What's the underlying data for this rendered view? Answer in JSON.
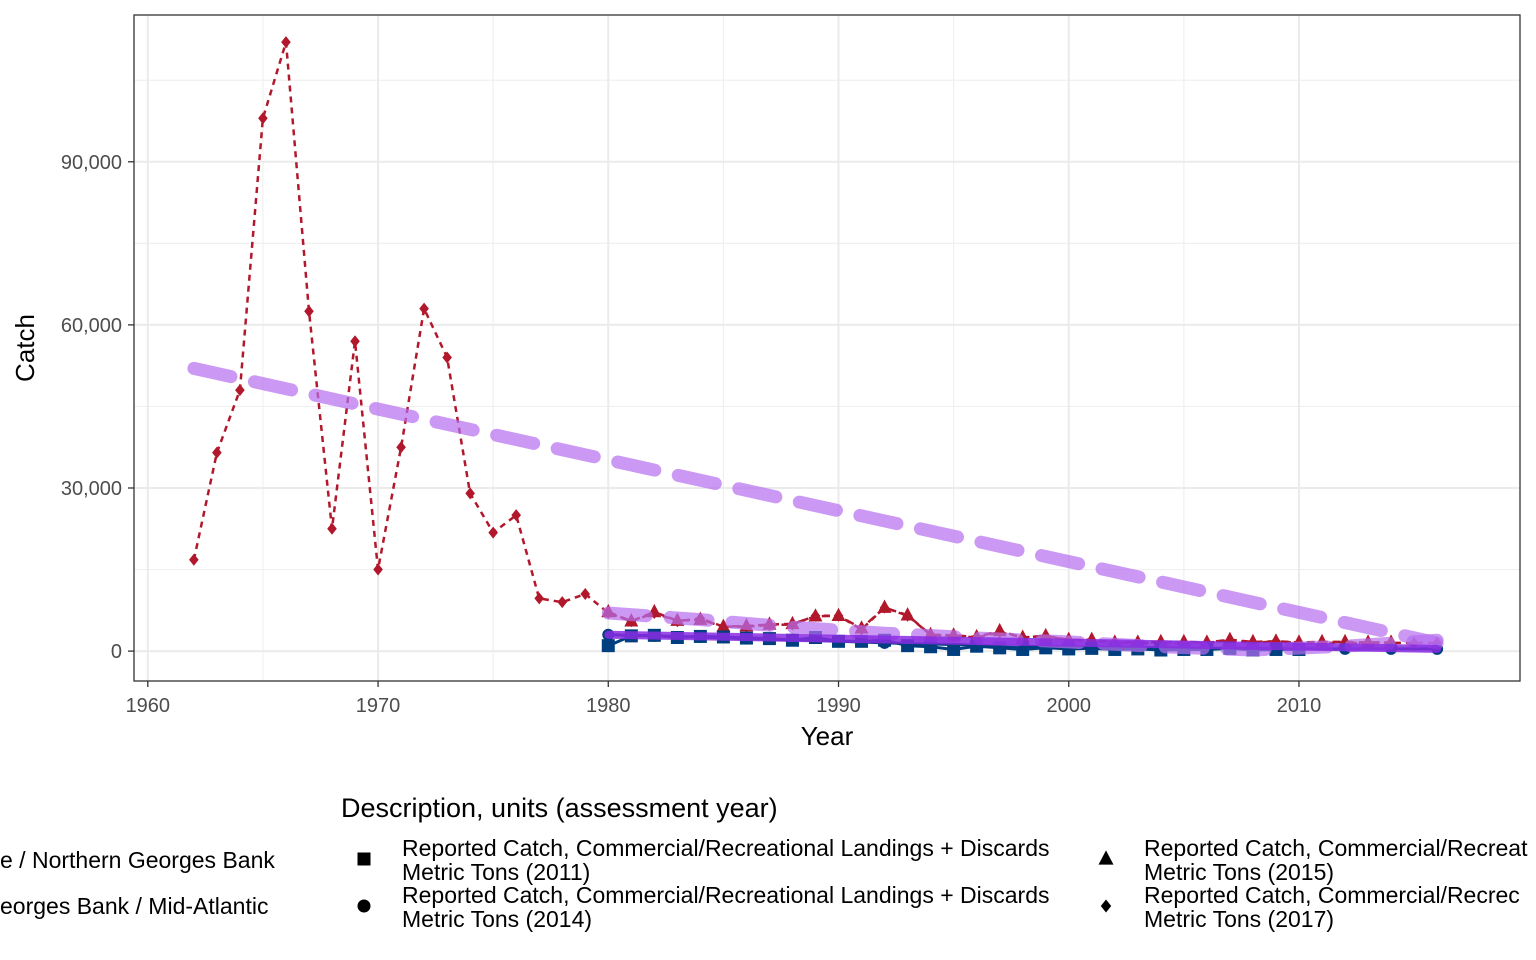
{
  "chart_data": {
    "type": "line",
    "xlabel": "Year",
    "ylabel": "Catch",
    "xlim": [
      1959.4,
      2019.6
    ],
    "ylim": [
      -5500,
      117000
    ],
    "x_ticks": [
      1960,
      1970,
      1980,
      1990,
      2000,
      2010
    ],
    "y_ticks": [
      0,
      30000,
      60000,
      90000
    ],
    "y_tick_labels": [
      "0",
      "30,000",
      "60,000",
      "90,000"
    ],
    "grid": true,
    "legend_title": "Description, units (assessment year)",
    "legend_placement": "bottom",
    "region_legend": [
      {
        "label": "e / Northern Georges Bank",
        "color": "#003f7f"
      },
      {
        "label": "eorges Bank / Mid-Atlantic",
        "color": "#b2182b"
      }
    ],
    "shape_legend": [
      {
        "shape": "square",
        "line1": "Reported Catch, Commercial/Recreational Landings + Discards",
        "line2": "Metric Tons (2011)"
      },
      {
        "shape": "circle",
        "line1": "Reported Catch, Commercial/Recreational Landings + Discards",
        "line2": "Metric Tons (2014)"
      },
      {
        "shape": "triangle",
        "line1": "Reported Catch, Commercial/Recreat",
        "line2": "Metric Tons (2015)"
      },
      {
        "shape": "diamond",
        "line1": "Reported Catch, Commercial/Recrec",
        "line2": "Metric Tons (2017)"
      }
    ],
    "series": [
      {
        "region": "southern",
        "shape": "diamond",
        "color": "#b2182b",
        "dash": "6,5",
        "width": 2.5,
        "marker_size": 6,
        "x": [
          1962,
          1963,
          1964,
          1965,
          1966,
          1967,
          1968,
          1969,
          1970,
          1971,
          1972,
          1973,
          1974,
          1975,
          1976,
          1977,
          1978,
          1979,
          1980,
          1981,
          1982,
          1983,
          1984,
          1985,
          1986,
          1987,
          1988,
          1989,
          1990,
          1991,
          1992,
          1993,
          1994,
          1995,
          1996,
          1997,
          1998,
          1999,
          2000,
          2001,
          2002,
          2003,
          2004,
          2005,
          2006,
          2007,
          2008,
          2009,
          2010,
          2011,
          2012,
          2013,
          2014,
          2015,
          2016
        ],
        "y": [
          16800,
          36500,
          48000,
          98000,
          112000,
          62500,
          22500,
          57000,
          15000,
          37500,
          63000,
          54000,
          29000,
          21800,
          25000,
          9700,
          9000,
          10500,
          7000,
          5500,
          7000,
          5500,
          6000,
          4500,
          4500,
          4800,
          4900,
          6500,
          6500,
          4000,
          8000,
          6500,
          3000,
          2800,
          2500,
          3500,
          2500,
          2800,
          2000,
          2000,
          1500,
          1500,
          1500,
          1500,
          1500,
          2000,
          1500,
          1800,
          1500,
          1500,
          1500,
          1500,
          1500,
          1500,
          1500
        ]
      },
      {
        "region": "southern",
        "shape": "triangle",
        "color": "#b2182b",
        "dash": "8,5",
        "width": 2.5,
        "marker_size": 7,
        "x": [
          1980,
          1981,
          1982,
          1983,
          1984,
          1985,
          1986,
          1987,
          1988,
          1989,
          1990,
          1991,
          1992,
          1993,
          1994,
          1995,
          1996,
          1997,
          1998,
          1999,
          2000,
          2001,
          2002,
          2003,
          2004,
          2005,
          2006,
          2007,
          2008,
          2009,
          2010,
          2011,
          2012,
          2013,
          2014
        ],
        "y": [
          7200,
          5500,
          7200,
          5600,
          5800,
          4500,
          4600,
          4900,
          5000,
          6400,
          6500,
          4200,
          8000,
          6600,
          3000,
          2900,
          2600,
          3700,
          2500,
          2800,
          2100,
          2100,
          1600,
          1600,
          1700,
          1700,
          1600,
          2100,
          1700,
          1800,
          1600,
          1700,
          1700,
          1600,
          1600
        ]
      },
      {
        "region": "northern",
        "shape": "square",
        "color": "#003f7f",
        "dash": "none",
        "width": 3,
        "marker_size": 6.5,
        "x": [
          1980,
          1981,
          1982,
          1983,
          1984,
          1985,
          1986,
          1987,
          1988,
          1989,
          1990,
          1991,
          1992,
          1993,
          1994,
          1995,
          1996,
          1997,
          1998,
          1999,
          2000,
          2001,
          2002,
          2003,
          2004,
          2005,
          2006,
          2007,
          2008,
          2009,
          2010
        ],
        "y": [
          1000,
          2800,
          2900,
          2500,
          2700,
          2600,
          2400,
          2300,
          2000,
          2500,
          1800,
          1800,
          2000,
          1000,
          800,
          300,
          900,
          600,
          300,
          600,
          400,
          500,
          300,
          400,
          200,
          300,
          300,
          500,
          200,
          300,
          300
        ]
      },
      {
        "region": "northern",
        "shape": "circle",
        "color": "#003f7f",
        "dash": "none",
        "width": 3,
        "marker_size": 6,
        "x": [
          1980,
          1982,
          1984,
          1986,
          1988,
          1990,
          1992,
          1994,
          1996,
          1998,
          2000,
          2002,
          2004,
          2006,
          2008,
          2010,
          2012,
          2014,
          2016
        ],
        "y": [
          3000,
          2800,
          2600,
          2300,
          2100,
          1800,
          1500,
          1300,
          1100,
          900,
          800,
          700,
          600,
          500,
          500,
          400,
          400,
          400,
          400
        ]
      },
      {
        "region": "trend",
        "shape": "none",
        "color": "#b56ef0",
        "opacity": 0.7,
        "dash": "38,24",
        "width": 13,
        "marker_size": 0,
        "x": [
          1962,
          2016
        ],
        "y": [
          52000,
          1500
        ]
      },
      {
        "region": "trend",
        "shape": "none",
        "color": "#b56ef0",
        "opacity": 0.7,
        "dash": "38,24",
        "width": 13,
        "marker_size": 0,
        "x": [
          1980,
          1984,
          1988,
          1992,
          1996,
          2000,
          2004,
          2008,
          2012,
          2016
        ],
        "y": [
          7000,
          5800,
          4400,
          3300,
          2400,
          1700,
          800,
          200,
          900,
          2000
        ]
      },
      {
        "region": "trend",
        "shape": "none",
        "color": "#8a2be2",
        "opacity": 0.85,
        "dash": "none",
        "width": 8,
        "marker_size": 0,
        "x": [
          1980,
          2016
        ],
        "y": [
          3000,
          400
        ]
      }
    ]
  }
}
